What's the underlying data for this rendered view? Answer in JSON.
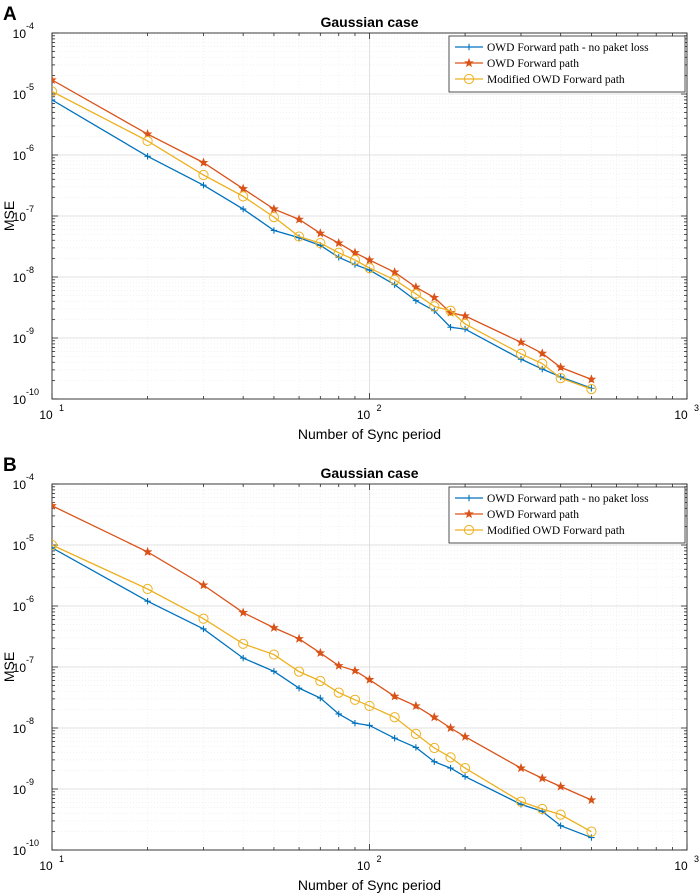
{
  "chart_data": [
    {
      "panel_label": "A",
      "type": "line",
      "title": "Gaussian case",
      "xlabel": "Number of Sync period",
      "ylabel": "MSE",
      "xscale": "log",
      "yscale": "log",
      "xlim": [
        10,
        1000
      ],
      "ylim": [
        1e-10,
        0.0001
      ],
      "grid": true,
      "legend_position": "top-right",
      "x_ticks": [
        {
          "base": "10",
          "exp": "1"
        },
        {
          "base": "10",
          "exp": "2"
        },
        {
          "base": "10",
          "exp": "3"
        }
      ],
      "y_ticks": [
        {
          "base": "10",
          "exp": "-10"
        },
        {
          "base": "10",
          "exp": "-9"
        },
        {
          "base": "10",
          "exp": "-8"
        },
        {
          "base": "10",
          "exp": "-7"
        },
        {
          "base": "10",
          "exp": "-6"
        },
        {
          "base": "10",
          "exp": "-5"
        },
        {
          "base": "10",
          "exp": "-4"
        }
      ],
      "x": [
        10,
        20,
        30,
        40,
        50,
        60,
        70,
        80,
        90,
        100,
        120,
        140,
        160,
        180,
        200,
        300,
        350,
        400,
        500
      ],
      "series": [
        {
          "name": "OWD Forward path - no paket loss",
          "color": "#0072BD",
          "marker": "plus",
          "values": [
            8e-06,
            9.5e-07,
            3.2e-07,
            1.3e-07,
            5.8e-08,
            4.4e-08,
            3.3e-08,
            2.1e-08,
            1.6e-08,
            1.3e-08,
            7.5e-09,
            4.1e-09,
            2.8e-09,
            1.5e-09,
            1.4e-09,
            4.5e-10,
            3.1e-10,
            2.3e-10,
            1.5e-10
          ]
        },
        {
          "name": "OWD Forward path",
          "color": "#D95319",
          "marker": "star",
          "values": [
            1.7e-05,
            2.2e-06,
            7.5e-07,
            2.8e-07,
            1.3e-07,
            8.8e-08,
            5.2e-08,
            3.6e-08,
            2.5e-08,
            1.9e-08,
            1.2e-08,
            6.8e-09,
            4.6e-09,
            2.6e-09,
            2.3e-09,
            8.5e-10,
            5.6e-10,
            3.3e-10,
            2.1e-10
          ]
        },
        {
          "name": "Modified OWD Forward path",
          "color": "#EDB120",
          "marker": "circle",
          "values": [
            1.1e-05,
            1.7e-06,
            4.7e-07,
            2.1e-07,
            9.6e-08,
            4.6e-08,
            3.6e-08,
            2.5e-08,
            1.9e-08,
            1.4e-08,
            9e-09,
            5.3e-09,
            3.3e-09,
            2.8e-09,
            1.7e-09,
            5.5e-10,
            3.8e-10,
            2.2e-10,
            1.45e-10
          ]
        }
      ]
    },
    {
      "panel_label": "B",
      "type": "line",
      "title": "Gaussian case",
      "xlabel": "Number of Sync period",
      "ylabel": "MSE",
      "xscale": "log",
      "yscale": "log",
      "xlim": [
        10,
        1000
      ],
      "ylim": [
        1e-10,
        0.0001
      ],
      "grid": true,
      "legend_position": "top-right",
      "x_ticks": [
        {
          "base": "10",
          "exp": "1"
        },
        {
          "base": "10",
          "exp": "2"
        },
        {
          "base": "10",
          "exp": "3"
        }
      ],
      "y_ticks": [
        {
          "base": "10",
          "exp": "-10"
        },
        {
          "base": "10",
          "exp": "-9"
        },
        {
          "base": "10",
          "exp": "-8"
        },
        {
          "base": "10",
          "exp": "-7"
        },
        {
          "base": "10",
          "exp": "-6"
        },
        {
          "base": "10",
          "exp": "-5"
        },
        {
          "base": "10",
          "exp": "-4"
        }
      ],
      "x": [
        10,
        20,
        30,
        40,
        50,
        60,
        70,
        80,
        90,
        100,
        120,
        140,
        160,
        180,
        200,
        300,
        350,
        400,
        500
      ],
      "series": [
        {
          "name": "OWD Forward path - no paket loss",
          "color": "#0072BD",
          "marker": "plus",
          "values": [
            9e-06,
            1.2e-06,
            4.2e-07,
            1.4e-07,
            8.5e-08,
            4.5e-08,
            3.1e-08,
            1.7e-08,
            1.2e-08,
            1.1e-08,
            6.8e-09,
            4.8e-09,
            2.8e-09,
            2.2e-09,
            1.6e-09,
            5.6e-10,
            4.3e-10,
            2.5e-10,
            1.6e-10
          ]
        },
        {
          "name": "OWD Forward path",
          "color": "#D95319",
          "marker": "star",
          "values": [
            4.4e-05,
            7.7e-06,
            2.2e-06,
            7.8e-07,
            4.4e-07,
            2.9e-07,
            1.7e-07,
            1.05e-07,
            8.7e-08,
            6.2e-08,
            3.3e-08,
            2.3e-08,
            1.5e-08,
            1e-08,
            7.2e-09,
            2.2e-09,
            1.5e-09,
            1.1e-09,
            6.6e-10
          ]
        },
        {
          "name": "Modified OWD Forward path",
          "color": "#EDB120",
          "marker": "circle",
          "values": [
            1e-05,
            1.9e-06,
            6.2e-07,
            2.4e-07,
            1.6e-07,
            8.4e-08,
            5.9e-08,
            3.8e-08,
            2.9e-08,
            2.3e-08,
            1.5e-08,
            8e-09,
            4.7e-09,
            3.3e-09,
            2.2e-09,
            6.2e-10,
            4.7e-10,
            3.8e-10,
            2e-10
          ]
        }
      ]
    }
  ]
}
